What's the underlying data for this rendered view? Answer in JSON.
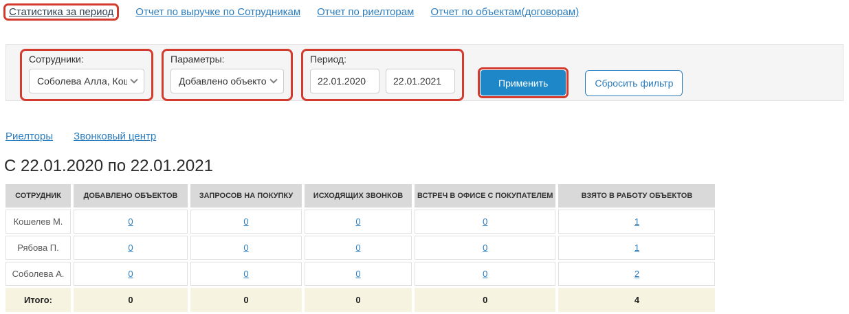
{
  "nav": {
    "active": {
      "label": "Статистика за период"
    },
    "links": [
      "Отчет по выручке по Сотрудникам",
      "Отчет по риелторам",
      "Отчет по объектам(договорам)"
    ]
  },
  "filters": {
    "employees": {
      "label": "Сотрудники:",
      "value": "Соболева Алла, Кош"
    },
    "parameters": {
      "label": "Параметры:",
      "value": "Добавлено объекто"
    },
    "period": {
      "label": "Период:",
      "from": "22.01.2020",
      "to": "22.01.2021"
    },
    "apply_label": "Применить",
    "reset_label": "Сбросить фильтр"
  },
  "tabs": [
    {
      "label": "Риелторы"
    },
    {
      "label": "Звонковый центр"
    }
  ],
  "heading": "С 22.01.2020 по 22.01.2021",
  "table": {
    "columns": [
      "СОТРУДНИК",
      "ДОБАВЛЕНО ОБЪЕКТОВ",
      "ЗАПРОСОВ НА ПОКУПКУ",
      "ИСХОДЯЩИХ ЗВОНКОВ",
      "ВСТРЕЧ В ОФИСЕ С ПОКУПАТЕЛЕМ",
      "ВЗЯТО В РАБОТУ ОБЪЕКТОВ"
    ],
    "rows": [
      {
        "name": "Кошелев М.",
        "values": [
          "0",
          "0",
          "0",
          "0",
          "1"
        ]
      },
      {
        "name": "Рябова П.",
        "values": [
          "0",
          "0",
          "0",
          "0",
          "1"
        ]
      },
      {
        "name": "Соболева А.",
        "values": [
          "0",
          "0",
          "0",
          "0",
          "2"
        ]
      }
    ],
    "totals": {
      "label": "Итого:",
      "values": [
        "0",
        "0",
        "0",
        "0",
        "4"
      ]
    }
  },
  "icons": {
    "dropdown": "chevron-down-icon"
  },
  "colors": {
    "highlight_red": "#d23b2e",
    "link_blue": "#2b7cbd",
    "active_link": "#2c3e50",
    "apply_button_blue": "#1d87c8",
    "filter_bar_bg": "#f5f5f5",
    "table_header_bg": "#d9d9d9",
    "totals_row_bg": "#f7f3e1"
  }
}
